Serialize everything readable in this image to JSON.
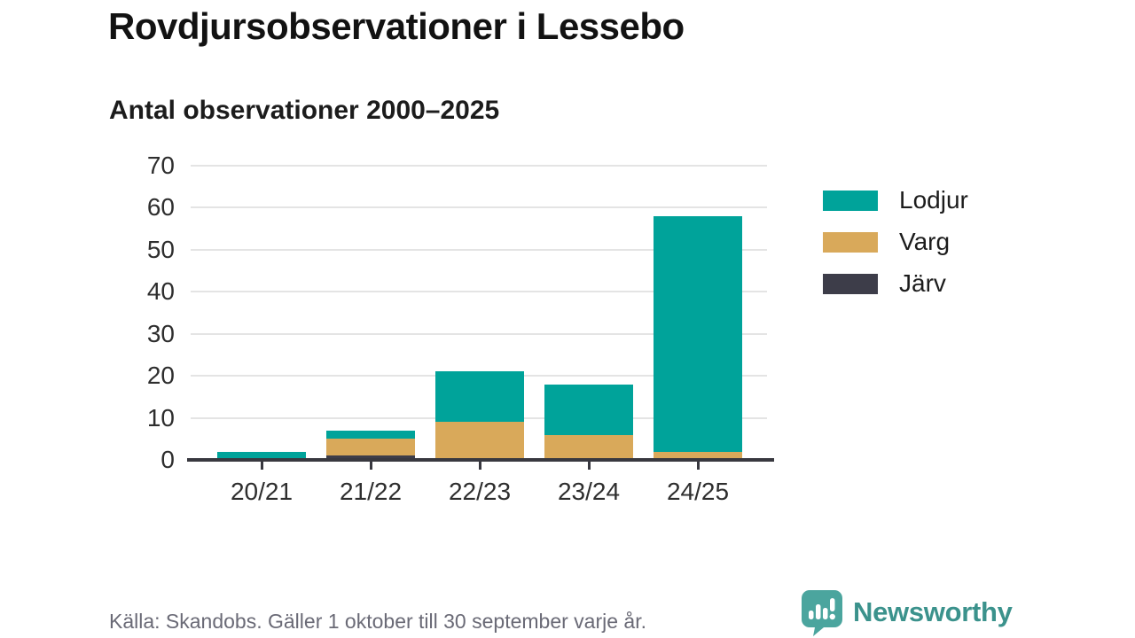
{
  "header": {
    "title": "Rovdjursobservationer i Lessebo",
    "subtitle": "Antal observationer 2000–2025"
  },
  "chart_data": {
    "type": "bar",
    "stacked": true,
    "title": "Rovdjursobservationer i Lessebo",
    "subtitle": "Antal observationer 2000–2025",
    "categories": [
      "20/21",
      "21/22",
      "22/23",
      "23/24",
      "24/25"
    ],
    "series": [
      {
        "name": "Järv",
        "color": "#3d3d49",
        "values": [
          0,
          1,
          0,
          0,
          0
        ]
      },
      {
        "name": "Varg",
        "color": "#d9a95a",
        "values": [
          0,
          4,
          9,
          6,
          2
        ]
      },
      {
        "name": "Lodjur",
        "color": "#00a39a",
        "values": [
          2,
          2,
          12,
          12,
          56
        ]
      }
    ],
    "totals": [
      2,
      7,
      21,
      18,
      58
    ],
    "xlabel": "",
    "ylabel": "",
    "ylim": [
      0,
      70
    ],
    "yticks": [
      0,
      10,
      20,
      30,
      40,
      50,
      60,
      70
    ],
    "grid": "horizontal",
    "legend_position": "right",
    "legend_order": [
      "Lodjur",
      "Varg",
      "Järv"
    ]
  },
  "legend": {
    "items": [
      {
        "label": "Lodjur",
        "color": "#00a39a"
      },
      {
        "label": "Varg",
        "color": "#d9a95a"
      },
      {
        "label": "Järv",
        "color": "#3d3d49"
      }
    ]
  },
  "footer": {
    "source_note": "Källa: Skandobs. Gäller 1 oktober till 30 september varje år."
  },
  "branding": {
    "logo_text": "Newsworthy",
    "logo_icon": "newsworthy-speech-bubble-chart-icon",
    "bubble_color": "#4ba59e",
    "wordmark_color": "#3b928c"
  }
}
